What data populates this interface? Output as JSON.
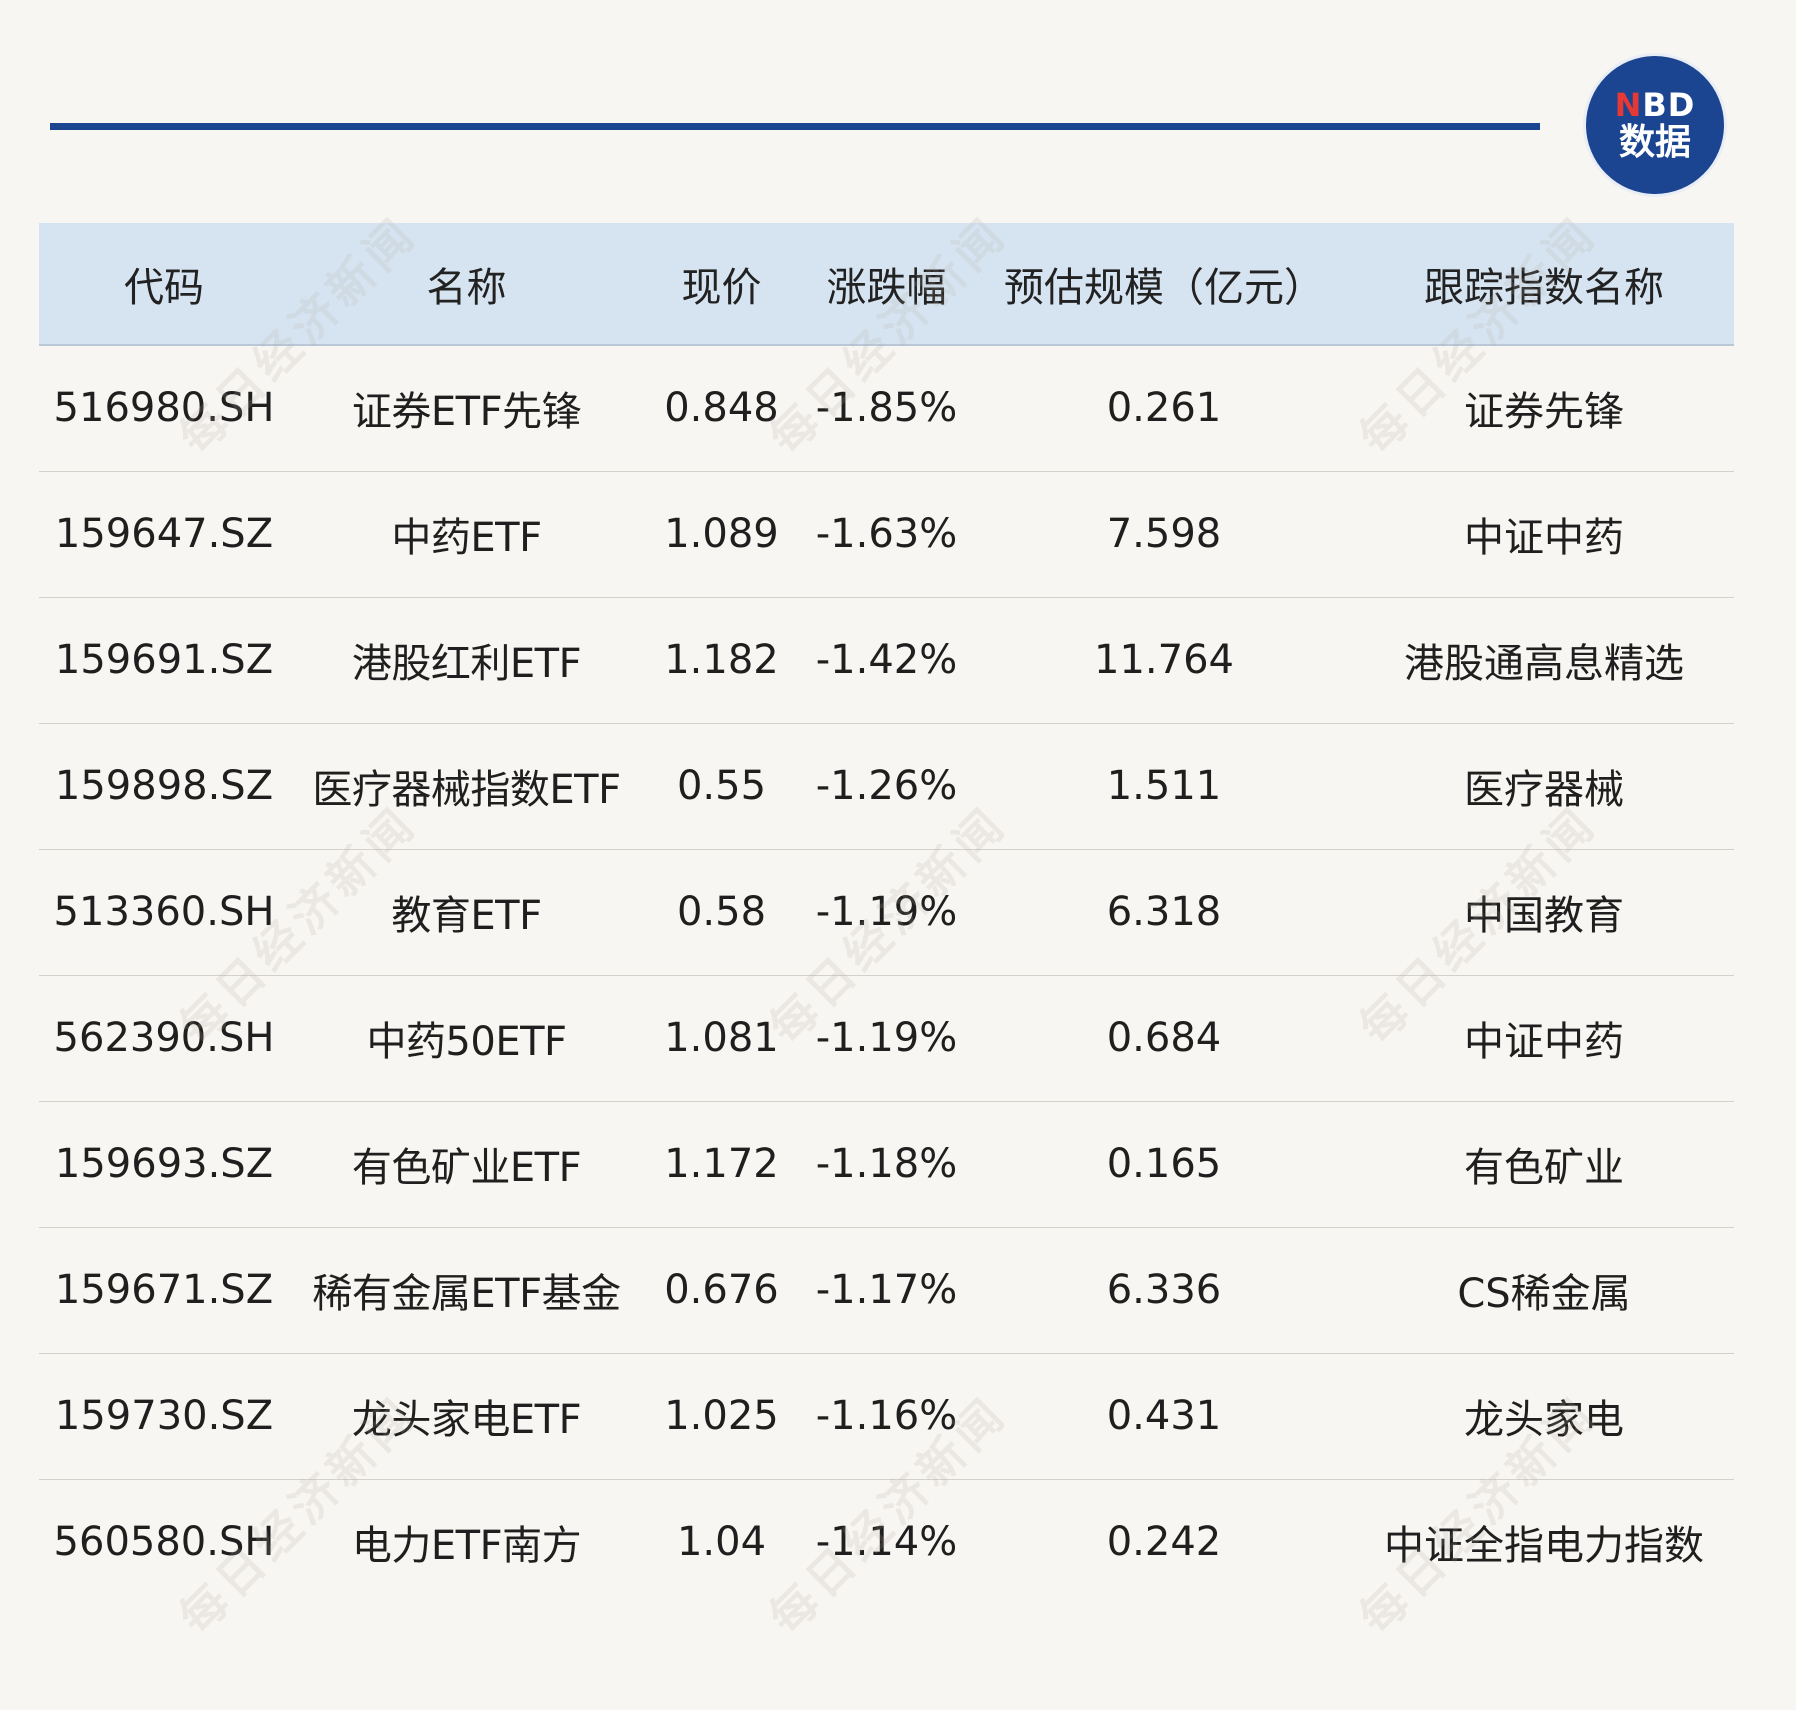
{
  "logo": {
    "line1_n": "N",
    "line1_bd": "BD",
    "line2": "数据"
  },
  "watermark_text": "每日经济新闻",
  "table": {
    "headers": {
      "code": "代码",
      "name": "名称",
      "price": "现价",
      "change": "涨跌幅",
      "scale": "预估规模（亿元）",
      "index": "跟踪指数名称"
    },
    "rows": [
      {
        "code": "516980.SH",
        "name": "证券ETF先锋",
        "price": "0.848",
        "change": "-1.85%",
        "scale": "0.261",
        "index": "证券先锋"
      },
      {
        "code": "159647.SZ",
        "name": "中药ETF",
        "price": "1.089",
        "change": "-1.63%",
        "scale": "7.598",
        "index": "中证中药"
      },
      {
        "code": "159691.SZ",
        "name": "港股红利ETF",
        "price": "1.182",
        "change": "-1.42%",
        "scale": "11.764",
        "index": "港股通高息精选"
      },
      {
        "code": "159898.SZ",
        "name": "医疗器械指数ETF",
        "price": "0.55",
        "change": "-1.26%",
        "scale": "1.511",
        "index": "医疗器械"
      },
      {
        "code": "513360.SH",
        "name": "教育ETF",
        "price": "0.58",
        "change": "-1.19%",
        "scale": "6.318",
        "index": "中国教育"
      },
      {
        "code": "562390.SH",
        "name": "中药50ETF",
        "price": "1.081",
        "change": "-1.19%",
        "scale": "0.684",
        "index": "中证中药"
      },
      {
        "code": "159693.SZ",
        "name": "有色矿业ETF",
        "price": "1.172",
        "change": "-1.18%",
        "scale": "0.165",
        "index": "有色矿业"
      },
      {
        "code": "159671.SZ",
        "name": "稀有金属ETF基金",
        "price": "0.676",
        "change": "-1.17%",
        "scale": "6.336",
        "index": "CS稀金属"
      },
      {
        "code": "159730.SZ",
        "name": "龙头家电ETF",
        "price": "1.025",
        "change": "-1.16%",
        "scale": "0.431",
        "index": "龙头家电"
      },
      {
        "code": "560580.SH",
        "name": "电力ETF南方",
        "price": "1.04",
        "change": "-1.14%",
        "scale": "0.242",
        "index": "中证全指电力指数"
      }
    ]
  },
  "colors": {
    "accent_blue": "#1b4591",
    "header_bg": "#d6e4f1",
    "page_bg": "#f8f6f2",
    "logo_red": "#e53935"
  }
}
